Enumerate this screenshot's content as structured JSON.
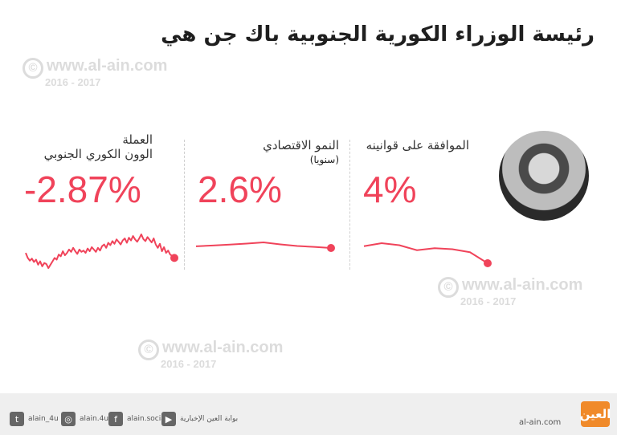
{
  "title": "رئيسة الوزراء الكورية الجنوبية باك جن هي",
  "watermark": {
    "url": "www.al-ain.com",
    "years": "2016 - 2017",
    "symbol": "©"
  },
  "accent_color": "#f0435a",
  "chart_data": [
    {
      "type": "line",
      "label_line1": "العملة",
      "label_line2": "الوون الكوري الجنوبي",
      "headline_value": "-2.87%",
      "values": [
        0.45,
        0.3,
        0.22,
        0.28,
        0.18,
        0.25,
        0.1,
        0.2,
        0.05,
        0.15,
        0.12,
        0.0,
        0.1,
        0.2,
        0.3,
        0.25,
        0.4,
        0.35,
        0.5,
        0.38,
        0.45,
        0.55,
        0.48,
        0.6,
        0.5,
        0.42,
        0.55,
        0.48,
        0.52,
        0.45,
        0.58,
        0.5,
        0.62,
        0.55,
        0.48,
        0.6,
        0.52,
        0.65,
        0.7,
        0.6,
        0.75,
        0.68,
        0.8,
        0.72,
        0.85,
        0.78,
        0.7,
        0.82,
        0.88,
        0.75,
        0.9,
        0.82,
        0.95,
        0.85,
        0.78,
        0.88,
        1.0,
        0.86,
        0.8,
        0.92,
        0.84,
        0.76,
        0.88,
        0.7,
        0.6,
        0.72,
        0.5,
        0.62,
        0.45,
        0.52,
        0.4,
        0.36,
        0.3
      ]
    },
    {
      "type": "line",
      "label_line1": "النمو الاقتصادي",
      "label_line2": "(سنويا)",
      "headline_value": "2.6%",
      "values": [
        0.3,
        0.45,
        0.6,
        0.78,
        1.0,
        0.65,
        0.35,
        0.2,
        0.0
      ]
    },
    {
      "type": "line",
      "label_line1": "الموافقة على قوانينه",
      "headline_value": "4%",
      "values": [
        0.85,
        1.0,
        0.9,
        0.65,
        0.75,
        0.7,
        0.55,
        0.0
      ]
    }
  ],
  "footer": {
    "social": [
      {
        "icon": "twitter-icon",
        "glyph": "t",
        "handle": "alain_4u"
      },
      {
        "icon": "instagram-icon",
        "glyph": "◎",
        "handle": "alain.4u"
      },
      {
        "icon": "facebook-icon",
        "glyph": "f",
        "handle": "alain.social"
      },
      {
        "icon": "youtube-icon",
        "glyph": "▶",
        "handle": "بوابة العين الإخبارية"
      }
    ],
    "site": "al-ain.com",
    "logo_text": "العين"
  }
}
